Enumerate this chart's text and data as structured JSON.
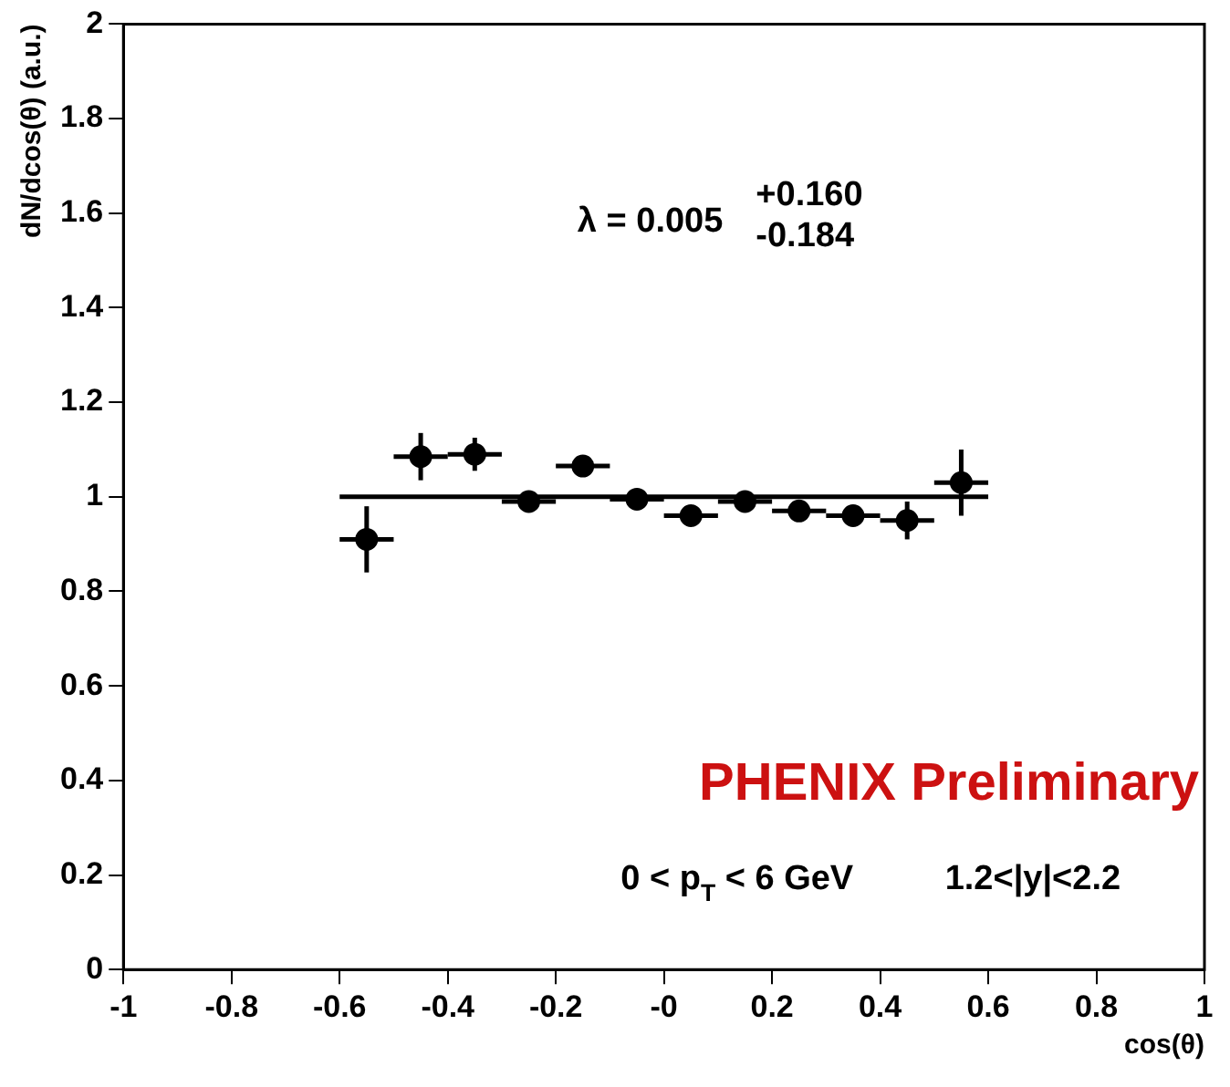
{
  "chart_data": {
    "type": "scatter",
    "xlabel": "cos(θ)",
    "ylabel": "dN/dcos(θ) (a.u.)",
    "xlim": [
      -1,
      1
    ],
    "xticks": [
      -1,
      -0.8,
      -0.6,
      -0.4,
      -0.2,
      {
        "value": 0,
        "label": "-0"
      },
      0.2,
      0.4,
      0.6,
      0.8,
      1
    ],
    "ylim": [
      0,
      2
    ],
    "yticks": [
      0,
      0.2,
      0.4,
      0.6,
      0.8,
      1,
      1.2,
      1.4,
      1.6,
      1.8,
      2
    ],
    "grid": false,
    "legend": false,
    "marker": "circle",
    "series": [
      {
        "type": "scatter",
        "color": "#000000",
        "x": [
          -0.55,
          -0.45,
          -0.35,
          -0.25,
          -0.15,
          -0.05,
          0.05,
          0.15,
          0.25,
          0.35,
          0.45,
          0.55
        ],
        "values": [
          0.91,
          1.085,
          1.09,
          0.99,
          1.065,
          0.995,
          0.96,
          0.99,
          0.97,
          0.96,
          0.95,
          1.03
        ],
        "errors": [
          0.07,
          0.05,
          0.035,
          0.02,
          0.02,
          0.02,
          0.015,
          0.02,
          0.02,
          0.02,
          0.04,
          0.07
        ],
        "xerrors": [
          0.05,
          0.05,
          0.05,
          0.05,
          0.05,
          0.05,
          0.05,
          0.05,
          0.05,
          0.05,
          0.05,
          0.05
        ]
      },
      {
        "type": "line",
        "color": "#000000",
        "x": [
          -0.6,
          0.6
        ],
        "values": [
          1,
          1
        ],
        "marker": "none",
        "line_style": "solid"
      }
    ],
    "annotations": [
      "λ = 0.005",
      "+0.160",
      "-0.184",
      "PHENIX Preliminary",
      "0 < p$_{T}$ < 6 GeV",
      "1.2<|y|<2.2"
    ]
  }
}
